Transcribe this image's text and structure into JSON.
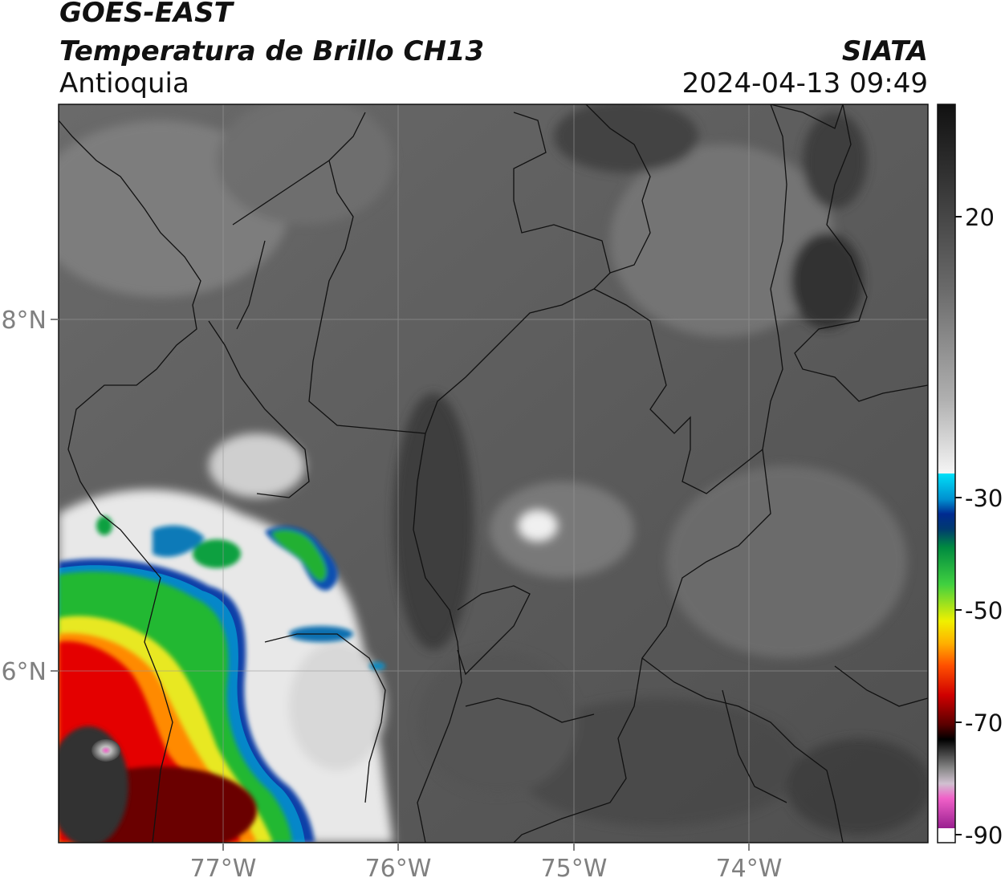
{
  "header": {
    "satellite": "GOES-EAST",
    "product": "Temperatura de Brillo CH13",
    "region": "Antioquia",
    "agency": "SIATA",
    "datetime": "2024-04-13 09:49"
  },
  "axes": {
    "x_ticks": [
      "77°W",
      "76°W",
      "75°W",
      "74°W"
    ],
    "y_ticks": [
      "8°N",
      "6°N"
    ]
  },
  "colorbar": {
    "tick_labels": [
      "20",
      "-30",
      "-50",
      "-70",
      "-90"
    ],
    "colors": {
      "warm_gray_dark": "#1a1a1a",
      "warm_gray_light": "#f2f2f2",
      "cyan": "#00d8f0",
      "blue": "#00339a",
      "green": "#00b030",
      "yellow": "#f0f000",
      "orange": "#ff9000",
      "red": "#e00000",
      "dark_red": "#5a0000",
      "black": "#000000",
      "gray": "#8a8a8a",
      "pink": "#f060c8",
      "purple": "#9a2090"
    }
  }
}
